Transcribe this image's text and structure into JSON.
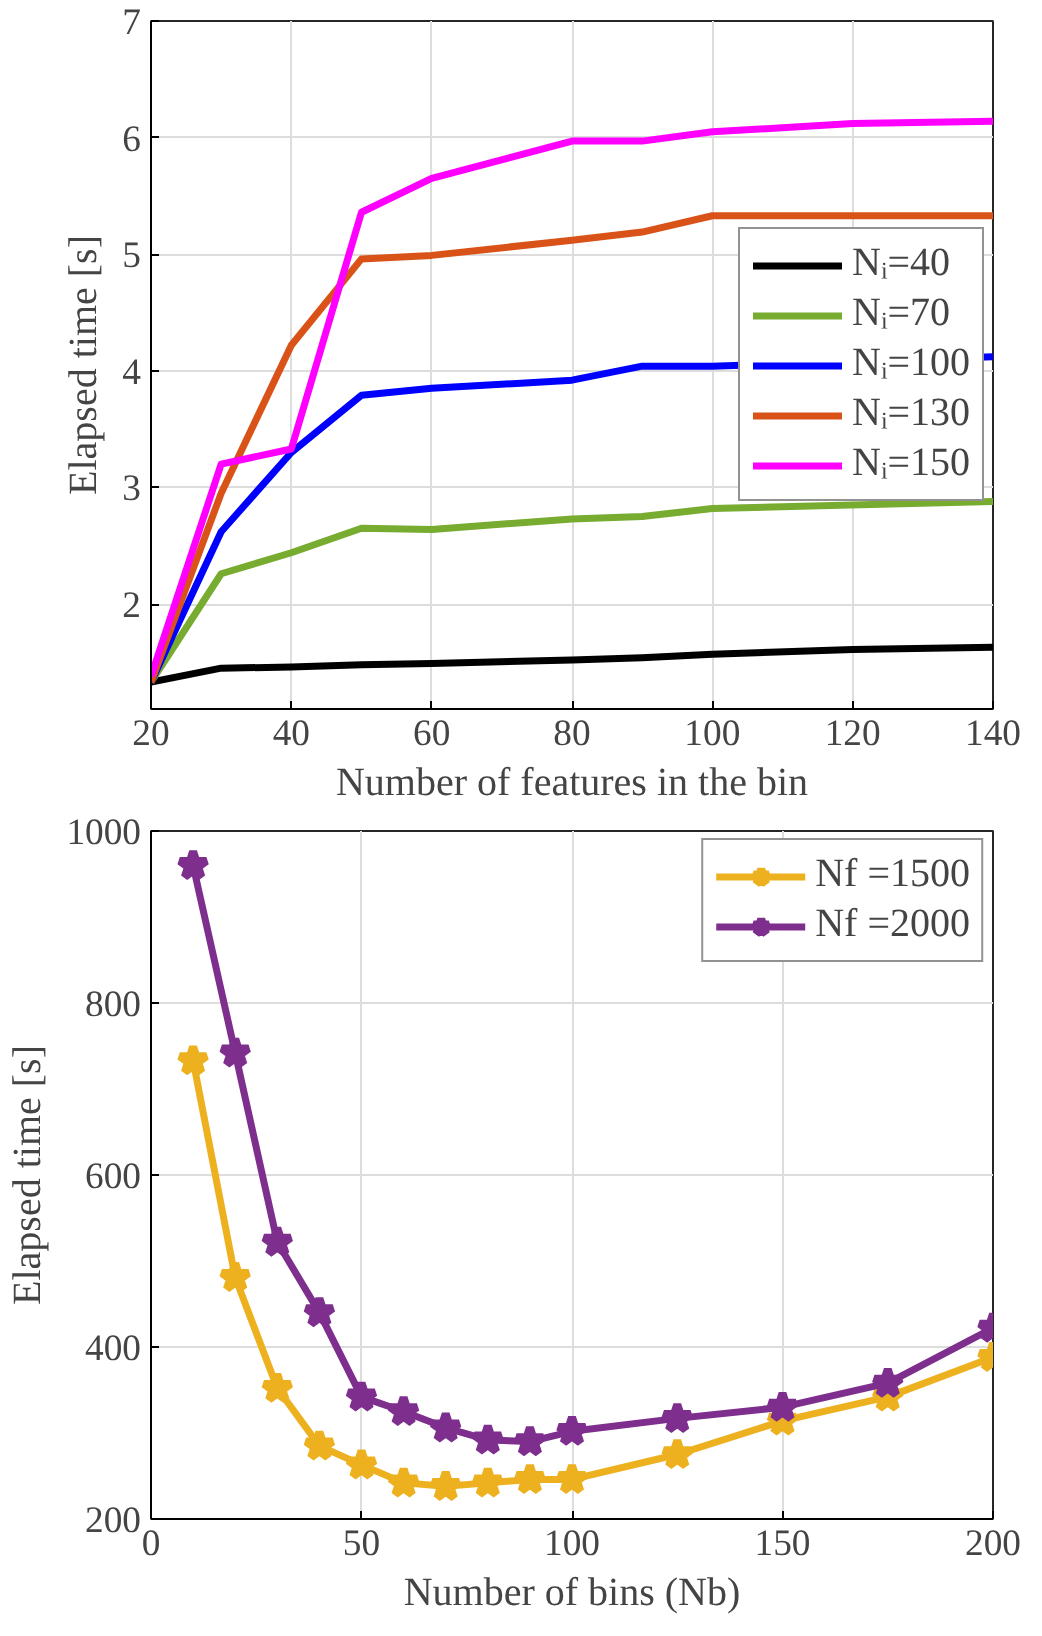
{
  "chart_data": [
    {
      "type": "line",
      "xlabel": "Number of features in the bin",
      "ylabel": "Elapsed time [s]",
      "x": [
        20,
        30,
        40,
        50,
        60,
        80,
        90,
        100,
        120,
        140
      ],
      "xlim": [
        20,
        140
      ],
      "xticks": [
        20,
        40,
        60,
        80,
        100,
        120,
        140
      ],
      "ylim": [
        1.1,
        7
      ],
      "yticks": [
        2,
        3,
        4,
        5,
        6,
        7
      ],
      "grid": true,
      "legend": "right",
      "marker": "none",
      "line_style": "solid",
      "series": [
        {
          "name": "Nᵢ=40",
          "color": "#000000",
          "values": [
            1.33,
            1.45,
            1.46,
            1.48,
            1.49,
            1.52,
            1.54,
            1.57,
            1.61,
            1.63
          ]
        },
        {
          "name": "Nᵢ=70",
          "color": "#77ac30",
          "values": [
            1.33,
            2.26,
            2.44,
            2.65,
            2.64,
            2.73,
            2.75,
            2.82,
            null,
            2.88
          ]
        },
        {
          "name": "Nᵢ=100",
          "color": "#0000ff",
          "values": [
            1.33,
            2.62,
            3.3,
            3.79,
            3.85,
            3.92,
            4.04,
            4.04,
            null,
            4.12
          ]
        },
        {
          "name": "Nᵢ=130",
          "color": "#d95319",
          "values": [
            1.33,
            2.95,
            4.22,
            4.96,
            4.99,
            5.12,
            5.19,
            5.33,
            null,
            5.33
          ]
        },
        {
          "name": "Nᵢ=150",
          "color": "#ff00ff",
          "values": [
            1.38,
            3.2,
            3.33,
            5.36,
            5.65,
            5.97,
            5.97,
            6.05,
            6.12,
            6.14
          ]
        }
      ]
    },
    {
      "type": "line",
      "xlabel": "Number of bins (Nb)",
      "ylabel": "Elapsed time [s]",
      "x": [
        10,
        20,
        30,
        40,
        50,
        60,
        70,
        80,
        90,
        100,
        125,
        150,
        175,
        200
      ],
      "xlim": [
        0,
        200
      ],
      "xticks": [
        0,
        50,
        100,
        150,
        200
      ],
      "ylim": [
        200,
        1000
      ],
      "yticks": [
        200,
        400,
        600,
        800,
        1000
      ],
      "grid": true,
      "legend": "top right",
      "marker": "star",
      "line_style": "solid",
      "series": [
        {
          "name": "Nf =1500",
          "color": "#edb120",
          "values": [
            733,
            481,
            352,
            285,
            263,
            242,
            238,
            242,
            246,
            246,
            275,
            314,
            342,
            388
          ]
        },
        {
          "name": "Nf =2000",
          "color": "#7e2f8e",
          "values": [
            960,
            742,
            522,
            440,
            342,
            325,
            306,
            292,
            290,
            302,
            317,
            330,
            358,
            422
          ]
        }
      ]
    }
  ]
}
